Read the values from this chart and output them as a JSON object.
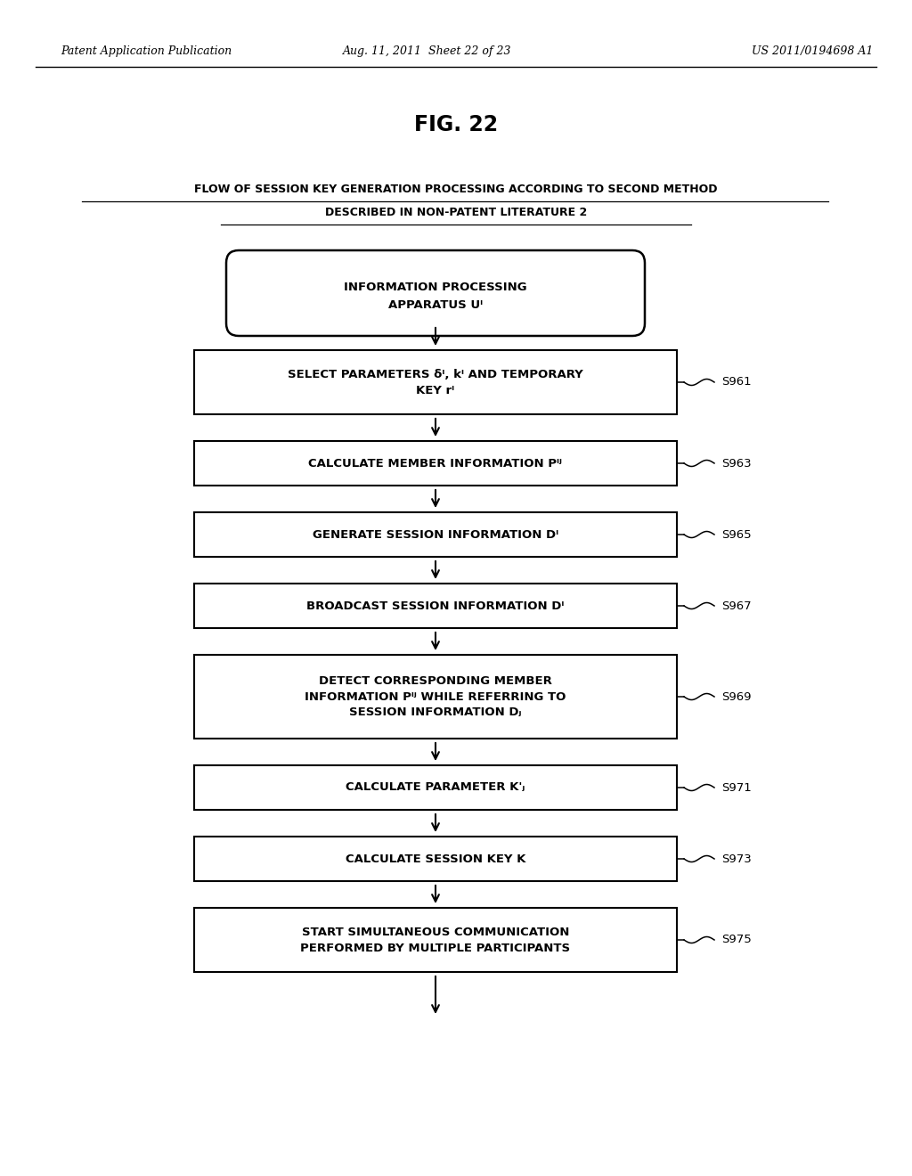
{
  "background_color": "#ffffff",
  "header_left": "Patent Application Publication",
  "header_mid": "Aug. 11, 2011  Sheet 22 of 23",
  "header_right": "US 2011/0194698 A1",
  "fig_title": "FIG. 22",
  "subtitle_line1": "FLOW OF SESSION KEY GENERATION PROCESSING ACCORDING TO SECOND METHOD",
  "subtitle_line2": "DESCRIBED IN NON-PATENT LITERATURE 2",
  "start_text_line1": "INFORMATION PROCESSING",
  "start_text_line2": "APPARATUS Uᴵ",
  "boxes": [
    {
      "text": "SELECT PARAMETERS δᴵ, kᴵ AND TEMPORARY\nKEY rᴵ",
      "label": "S961",
      "nlines": 2
    },
    {
      "text": "CALCULATE MEMBER INFORMATION Pᴵʲ",
      "label": "S963",
      "nlines": 1
    },
    {
      "text": "GENERATE SESSION INFORMATION Dᴵ",
      "label": "S965",
      "nlines": 1
    },
    {
      "text": "BROADCAST SESSION INFORMATION Dᴵ",
      "label": "S967",
      "nlines": 1
    },
    {
      "text": "DETECT CORRESPONDING MEMBER\nINFORMATION Pᴵʲ WHILE REFERRING TO\nSESSION INFORMATION Dⱼ",
      "label": "S969",
      "nlines": 3
    },
    {
      "text": "CALCULATE PARAMETER K'ⱼ",
      "label": "S971",
      "nlines": 1
    },
    {
      "text": "CALCULATE SESSION KEY K",
      "label": "S973",
      "nlines": 1
    },
    {
      "text": "START SIMULTANEOUS COMMUNICATION\nPERFORMED BY MULTIPLE PARTICIPANTS",
      "label": "S975",
      "nlines": 2
    }
  ]
}
